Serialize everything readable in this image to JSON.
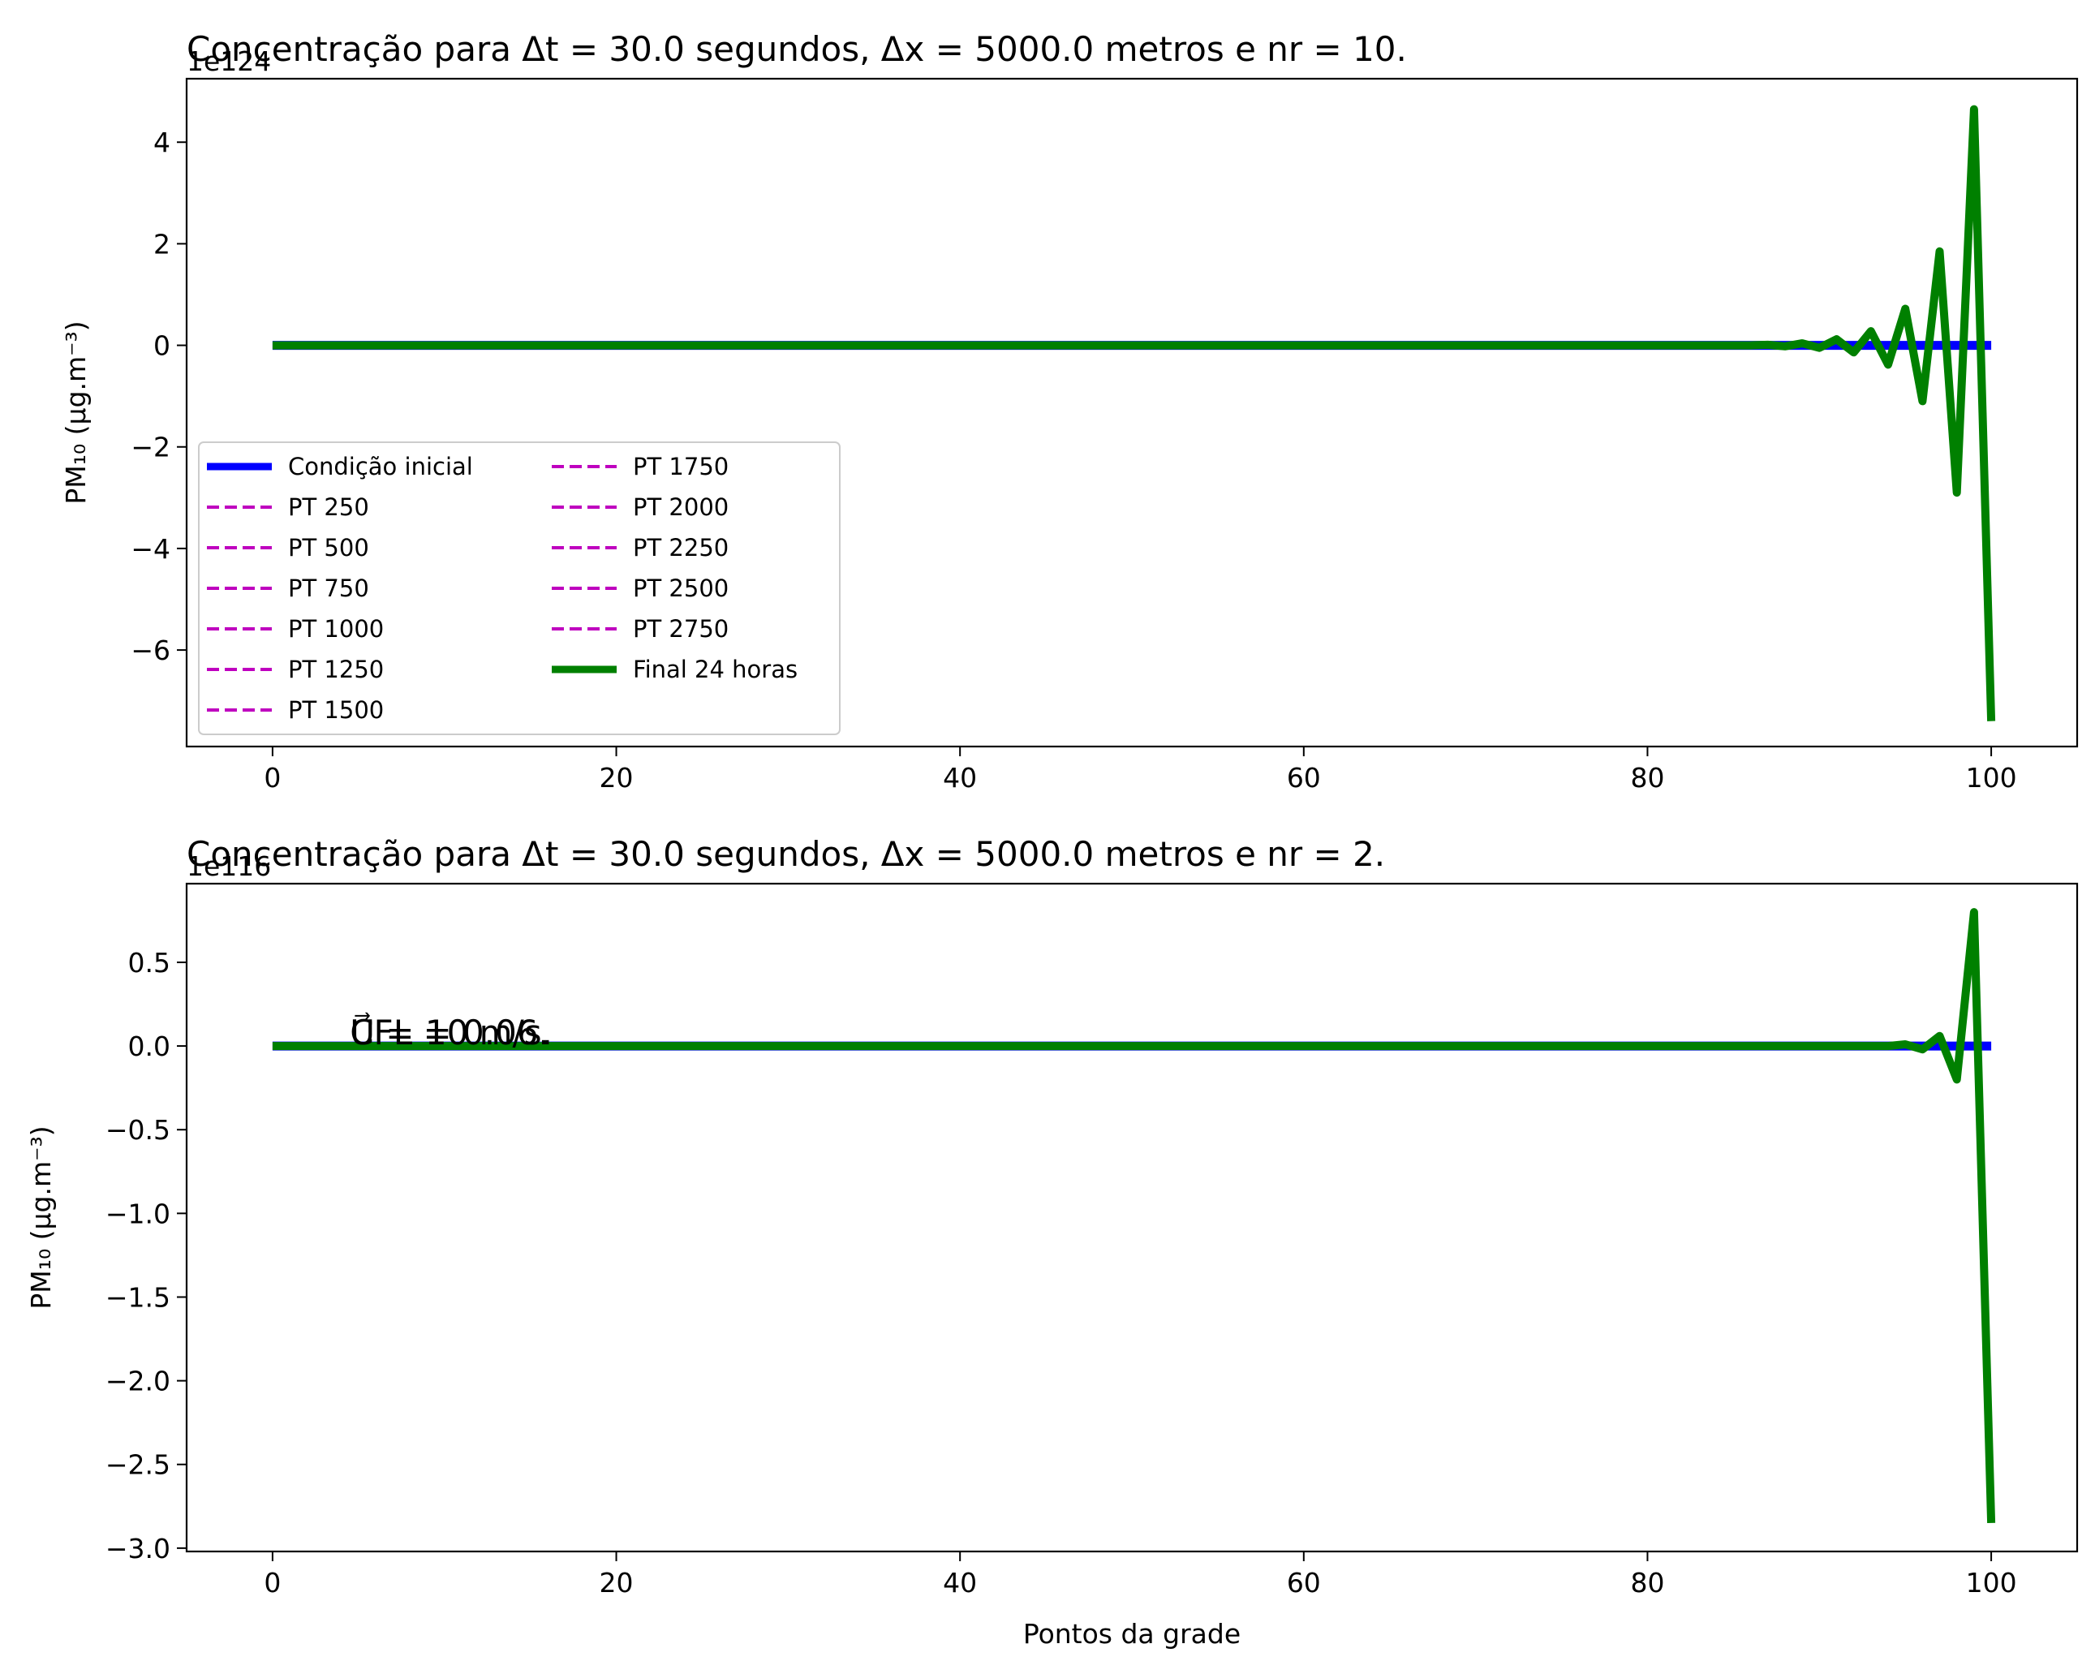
{
  "chart_data": [
    {
      "type": "line",
      "title": "Concentração para Δt = 30.0 segundos, Δx = 5000.0 metros e nr = 10.",
      "offset_text": "1e124",
      "xlabel": "",
      "ylabel": "PM₁₀ (μg.m⁻³)",
      "xlim": [
        -5,
        105
      ],
      "ylim": [
        -7.9,
        5.25
      ],
      "xticks": [
        0,
        20,
        40,
        60,
        80,
        100
      ],
      "xtick_labels": [
        "0",
        "20",
        "40",
        "60",
        "80",
        "100"
      ],
      "yticks": [
        -6,
        -4,
        -2,
        0,
        2,
        4
      ],
      "ytick_labels": [
        "−6",
        "−4",
        "−2",
        "0",
        "2",
        "4"
      ],
      "legend": {
        "location": "lower-left",
        "columns": 2,
        "entries": [
          {
            "label": "Condição inicial",
            "color": "#0000ff",
            "style": "solid"
          },
          {
            "label": "PT 250",
            "color": "#bf00bf",
            "style": "dashed"
          },
          {
            "label": "PT 500",
            "color": "#bf00bf",
            "style": "dashed"
          },
          {
            "label": "PT 750",
            "color": "#bf00bf",
            "style": "dashed"
          },
          {
            "label": "PT 1000",
            "color": "#bf00bf",
            "style": "dashed"
          },
          {
            "label": "PT 1250",
            "color": "#bf00bf",
            "style": "dashed"
          },
          {
            "label": "PT 1500",
            "color": "#bf00bf",
            "style": "dashed"
          },
          {
            "label": "PT 1750",
            "color": "#bf00bf",
            "style": "dashed"
          },
          {
            "label": "PT 2000",
            "color": "#bf00bf",
            "style": "dashed"
          },
          {
            "label": "PT 2250",
            "color": "#bf00bf",
            "style": "dashed"
          },
          {
            "label": "PT 2500",
            "color": "#bf00bf",
            "style": "dashed"
          },
          {
            "label": "PT 2750",
            "color": "#bf00bf",
            "style": "dashed"
          },
          {
            "label": "Final 24 horas",
            "color": "#008000",
            "style": "solid"
          }
        ]
      },
      "series": [
        {
          "name": "Condição inicial",
          "color": "#0000ff",
          "x": [
            0,
            100
          ],
          "y": [
            0,
            0
          ]
        },
        {
          "name": "Final 24 horas",
          "color": "#008000",
          "x": [
            0,
            86,
            87,
            88,
            89,
            90,
            91,
            92,
            93,
            94,
            95,
            96,
            97,
            98,
            99,
            100
          ],
          "y": [
            0,
            0,
            0.01,
            -0.02,
            0.04,
            -0.05,
            0.12,
            -0.14,
            0.28,
            -0.38,
            0.72,
            -1.1,
            1.85,
            -2.9,
            4.65,
            -7.4
          ]
        }
      ]
    },
    {
      "type": "line",
      "title": "Concentração para Δt = 30.0 segundos, Δx = 5000.0 metros e nr = 2.",
      "offset_text": "1e116",
      "xlabel": "Pontos da grade",
      "ylabel": "PM₁₀ (μg.m⁻³)",
      "xlim": [
        -5,
        105
      ],
      "ylim": [
        -3.02,
        0.97
      ],
      "xticks": [
        0,
        20,
        40,
        60,
        80,
        100
      ],
      "xtick_labels": [
        "0",
        "20",
        "40",
        "60",
        "80",
        "100"
      ],
      "yticks": [
        -3.0,
        -2.5,
        -2.0,
        -1.5,
        -1.0,
        -0.5,
        0.0,
        0.5
      ],
      "ytick_labels": [
        "−3.0",
        "−2.5",
        "−2.0",
        "−1.5",
        "−1.0",
        "−0.5",
        "0.0",
        "0.5"
      ],
      "annotations": [
        "CFL = 0.06.",
        "U⃗ = 10 m/s."
      ],
      "series": [
        {
          "color": "#0000ff",
          "x": [
            0,
            100
          ],
          "y": [
            0,
            0
          ]
        },
        {
          "color": "#008000",
          "x": [
            0,
            94,
            95,
            96,
            97,
            98,
            99,
            100
          ],
          "y": [
            0,
            0,
            0.01,
            -0.02,
            0.06,
            -0.2,
            0.8,
            -2.85
          ]
        }
      ]
    }
  ]
}
